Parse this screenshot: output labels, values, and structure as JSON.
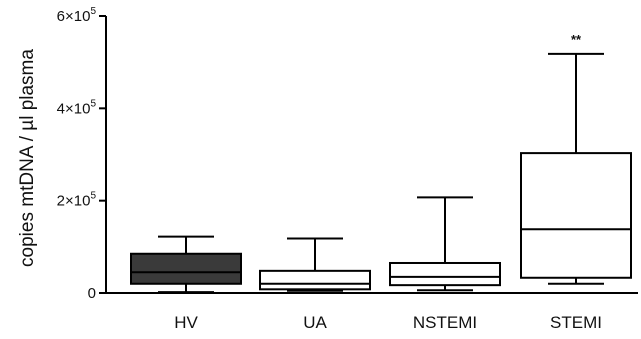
{
  "chart_data": {
    "type": "box",
    "ylabel": "copies mtDNA / µl plasma",
    "ylim": [
      0,
      600000
    ],
    "yticks": [
      {
        "value": 0,
        "mantissa": "0",
        "exponent": ""
      },
      {
        "value": 200000,
        "mantissa": "2×10",
        "exponent": "5"
      },
      {
        "value": 400000,
        "mantissa": "4×10",
        "exponent": "5"
      },
      {
        "value": 600000,
        "mantissa": "6×10",
        "exponent": "5"
      }
    ],
    "categories": [
      "HV",
      "UA",
      "NSTEMI",
      "STEMI"
    ],
    "boxes": [
      {
        "category": "HV",
        "min": 2000,
        "q1": 20000,
        "median": 45000,
        "q3": 85000,
        "max": 122000,
        "fill": "#3a3a3a"
      },
      {
        "category": "UA",
        "min": 5000,
        "q1": 8000,
        "median": 20000,
        "q3": 48000,
        "max": 118000,
        "fill": "#ffffff"
      },
      {
        "category": "NSTEMI",
        "min": 6000,
        "q1": 17000,
        "median": 35000,
        "q3": 65000,
        "max": 207000,
        "fill": "#ffffff"
      },
      {
        "category": "STEMI",
        "min": 20000,
        "q1": 33000,
        "median": 138000,
        "q3": 303000,
        "max": 518000,
        "fill": "#ffffff"
      }
    ],
    "annotations": [
      {
        "category": "STEMI",
        "text": "**"
      }
    ],
    "grid": false,
    "legend": "none"
  }
}
